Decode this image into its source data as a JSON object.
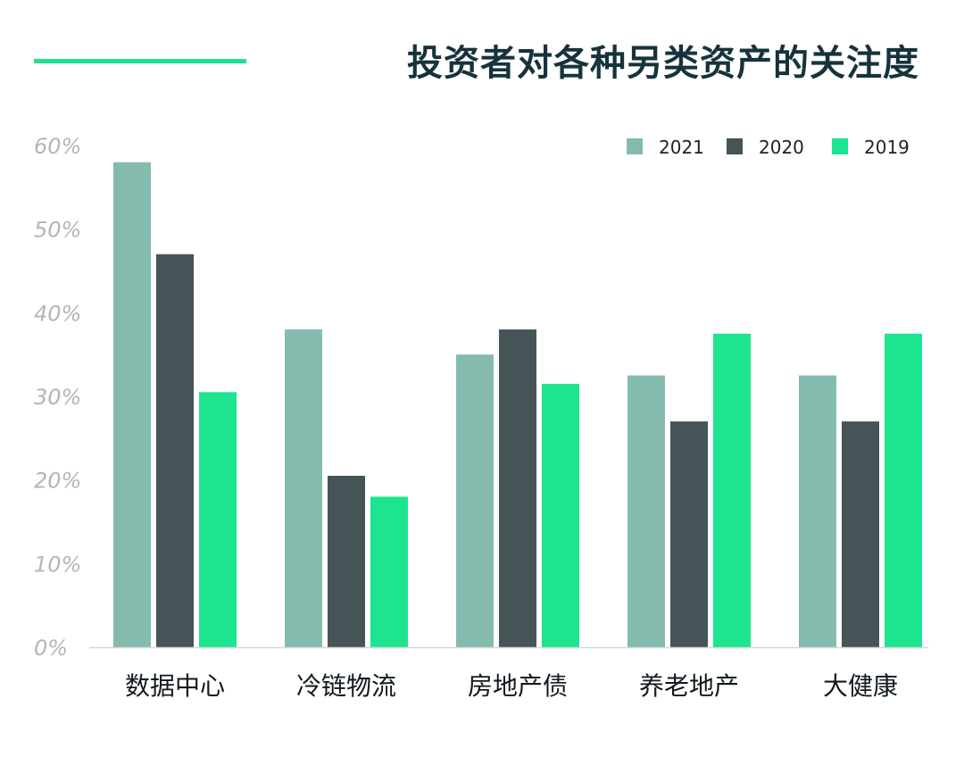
{
  "title": "投资者对各种另类资产的关注度",
  "colors": {
    "accent_line": "#21e08f",
    "title": "#16333c",
    "axis": "#d7d7d7",
    "tick": "#b5b5b5",
    "category": "#111a1e"
  },
  "chart_data": {
    "type": "bar",
    "title": "投资者对各种另类资产的关注度",
    "xlabel": "",
    "ylabel": "",
    "categories": [
      "数据中心",
      "冷链物流",
      "房地产债",
      "养老地产",
      "大健康"
    ],
    "series": [
      {
        "name": "2021",
        "color": "#84bbae",
        "values": [
          58,
          38,
          35,
          32.5,
          32.5
        ]
      },
      {
        "name": "2020",
        "color": "#455457",
        "values": [
          47,
          20.5,
          38,
          27,
          27
        ]
      },
      {
        "name": "2019",
        "color": "#1de48f",
        "values": [
          30.5,
          18,
          31.5,
          37.5,
          37.5
        ]
      }
    ],
    "ylim": [
      0,
      60
    ],
    "yticks": [
      0,
      10,
      20,
      30,
      40,
      50,
      60
    ],
    "ytick_labels": [
      "0%",
      "10%",
      "20%",
      "30%",
      "40%",
      "50%",
      "60%"
    ],
    "grid": false,
    "legend_position": "top-right"
  }
}
